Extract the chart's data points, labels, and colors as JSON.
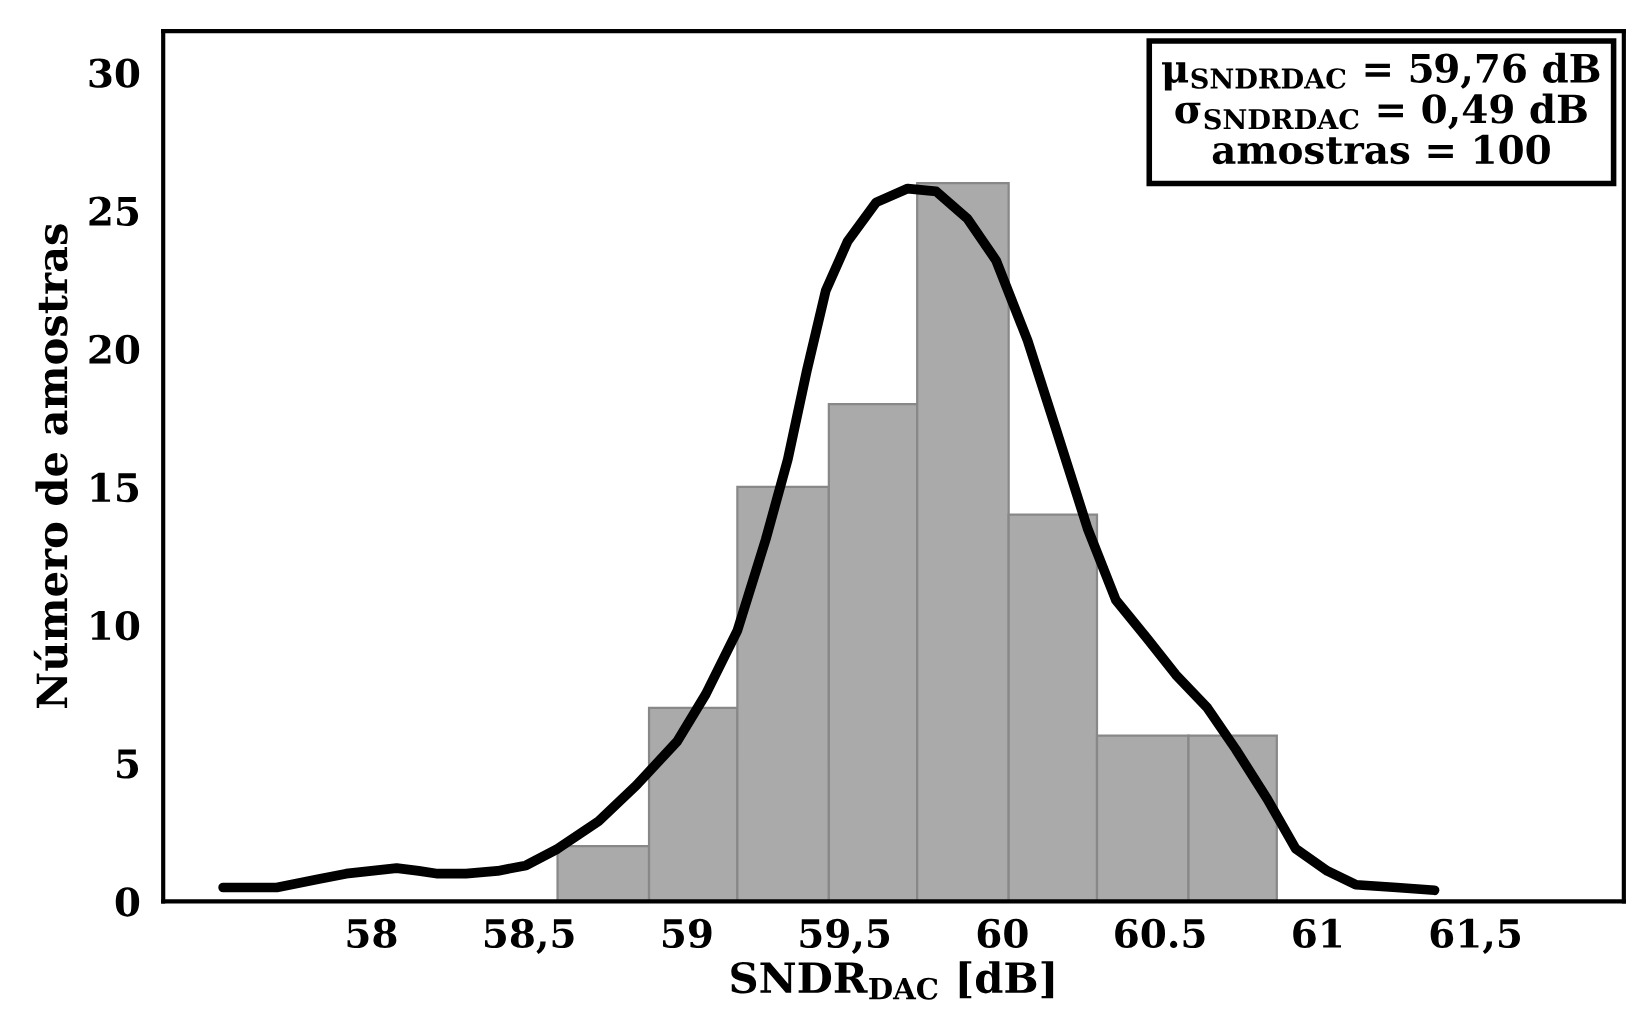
{
  "chart_data": {
    "type": "histogram",
    "xlabel": "SNDR$_{DAC}$ [dB]",
    "ylabel": "Número de amostras",
    "color": "#aaaaaa",
    "bins": [
      58.59,
      58.88,
      59.16,
      59.45,
      59.73,
      60.02,
      60.3,
      60.59,
      60.87
    ],
    "values": [
      2,
      7,
      15,
      18,
      26,
      14,
      6,
      6
    ],
    "series": [
      {
        "type": "line",
        "color": "#000000",
        "x": [
          57.53,
          57.7,
          57.83,
          57.92,
          58.0,
          58.08,
          58.15,
          58.21,
          58.3,
          58.4,
          58.49,
          58.59,
          58.72,
          58.84,
          58.97,
          59.06,
          59.16,
          59.25,
          59.32,
          59.38,
          59.44,
          59.51,
          59.6,
          59.7,
          59.79,
          59.89,
          59.98,
          60.08,
          60.17,
          60.27,
          60.36,
          60.46,
          60.55,
          60.65,
          60.74,
          60.84,
          60.93,
          61.03,
          61.12,
          61.25,
          61.37
        ],
        "values": [
          0.5,
          0.5,
          0.8,
          1.0,
          1.1,
          1.2,
          1.1,
          1.0,
          1.0,
          1.1,
          1.3,
          1.9,
          2.9,
          4.2,
          5.8,
          7.5,
          9.8,
          13.1,
          16.0,
          19.2,
          22.1,
          23.9,
          25.3,
          25.8,
          25.7,
          24.7,
          23.2,
          20.3,
          17.1,
          13.5,
          10.9,
          9.5,
          8.2,
          7.0,
          5.5,
          3.7,
          1.9,
          1.1,
          0.6,
          0.5,
          0.4
        ]
      }
    ],
    "annotations": [
      "μ$_{SNDRDAC}$ = 59,76 dB",
      "σ$_{SNDRDAC}$ = 0,49 dB",
      "amostras = 100"
    ],
    "xlim": [
      57.34,
      61.97
    ],
    "ylim": [
      0,
      31.5
    ],
    "xticks": [
      {
        "value": 58,
        "label": "58"
      },
      {
        "value": 58.5,
        "label": "58,5"
      },
      {
        "value": 59,
        "label": "59"
      },
      {
        "value": 59.5,
        "label": "59,5"
      },
      {
        "value": 60,
        "label": "60"
      },
      {
        "value": 60.5,
        "label": "60.5"
      },
      {
        "value": 61,
        "label": "61"
      },
      {
        "value": 61.5,
        "label": "61,5"
      }
    ],
    "yticks": [
      0,
      5,
      10,
      15,
      20,
      25,
      30
    ],
    "grid": false,
    "legend": false
  }
}
